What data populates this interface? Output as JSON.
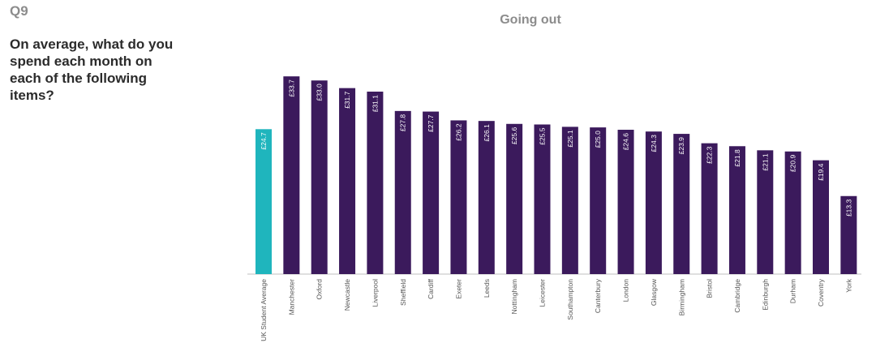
{
  "question": {
    "number": "Q9",
    "text": "On average, what do you spend each month on each of the following items?"
  },
  "chart_data": {
    "type": "bar",
    "title": "Going out",
    "categories": [
      "UK Student Average",
      "Manchester",
      "Oxford",
      "Newcastle",
      "Liverpool",
      "Sheffield",
      "Cardiff",
      "Exeter",
      "Leeds",
      "Nottingham",
      "Leicester",
      "Southampton",
      "Canterbury",
      "London",
      "Glasgow",
      "Birmingham",
      "Bristol",
      "Cambridge",
      "Edinburgh",
      "Durham",
      "Coventry",
      "York"
    ],
    "values": [
      24.7,
      33.7,
      33.0,
      31.7,
      31.1,
      27.8,
      27.7,
      26.2,
      26.1,
      25.6,
      25.5,
      25.1,
      25.0,
      24.6,
      24.3,
      23.9,
      22.3,
      21.8,
      21.1,
      20.9,
      19.4,
      13.3
    ],
    "data_labels": [
      "£24.7",
      "£33.7",
      "£33.0",
      "£31.7",
      "£31.1",
      "£27.8",
      "£27.7",
      "£26.2",
      "£26.1",
      "£25.6",
      "£25.5",
      "£25.1",
      "£25.0",
      "£24.6",
      "£24.3",
      "£23.9",
      "£22.3",
      "£21.8",
      "£21.1",
      "£20.9",
      "£19.4",
      "£13.3"
    ],
    "ylim": [
      0,
      34
    ],
    "grid": false,
    "xlabel": "",
    "ylabel": "",
    "colors": {
      "average": "#1fb5bd",
      "city": "#3b1a5c",
      "axis": "#bfbfbf",
      "label_text": "#ffffff",
      "tick_text": "#555555"
    }
  }
}
